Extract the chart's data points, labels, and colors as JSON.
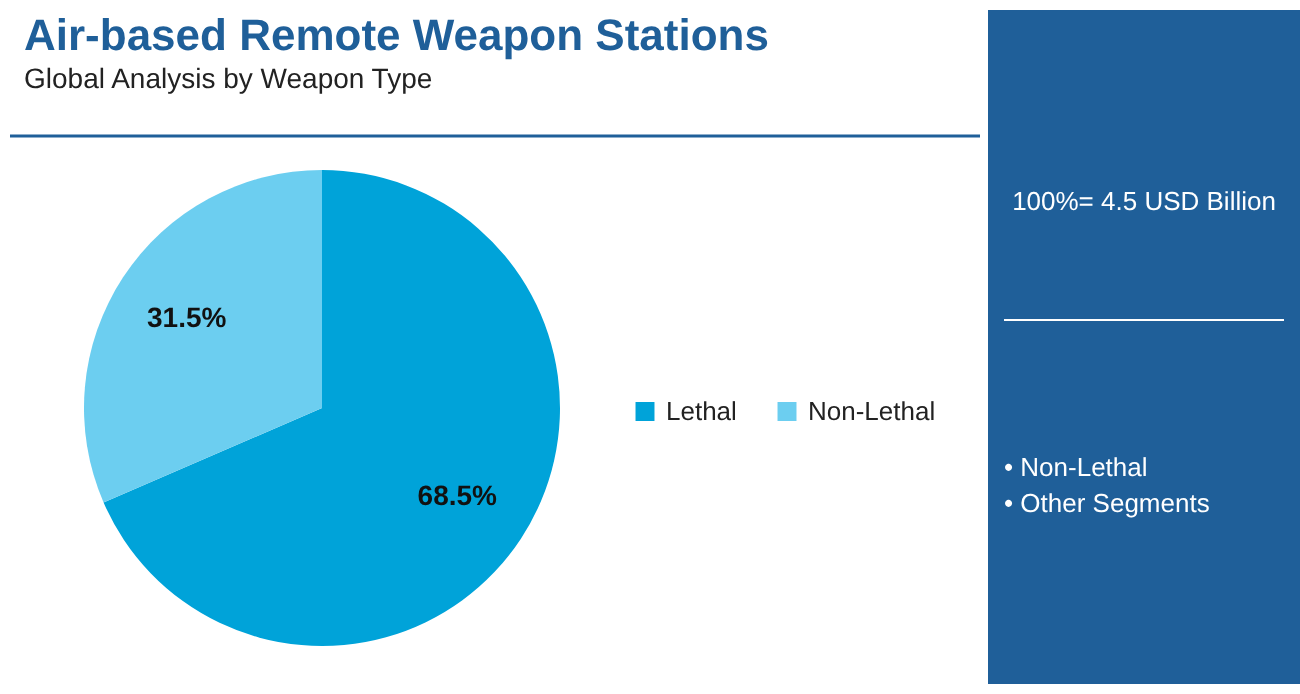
{
  "chart_data": {
    "type": "pie",
    "title": "Air-based Remote Weapon Stations",
    "subtitle": "Global Analysis by Weapon Type",
    "categories": [
      "Lethal",
      "Non-Lethal"
    ],
    "values": [
      68.5,
      31.5
    ],
    "colors": [
      "#00a3d9",
      "#6ccef0"
    ],
    "value_labels": [
      "68.5%",
      "31.5%"
    ],
    "legend": "right",
    "annotations": [
      "100%= 4.5 USD Billion",
      "• Non-Lethal",
      "• Other Segments"
    ]
  }
}
